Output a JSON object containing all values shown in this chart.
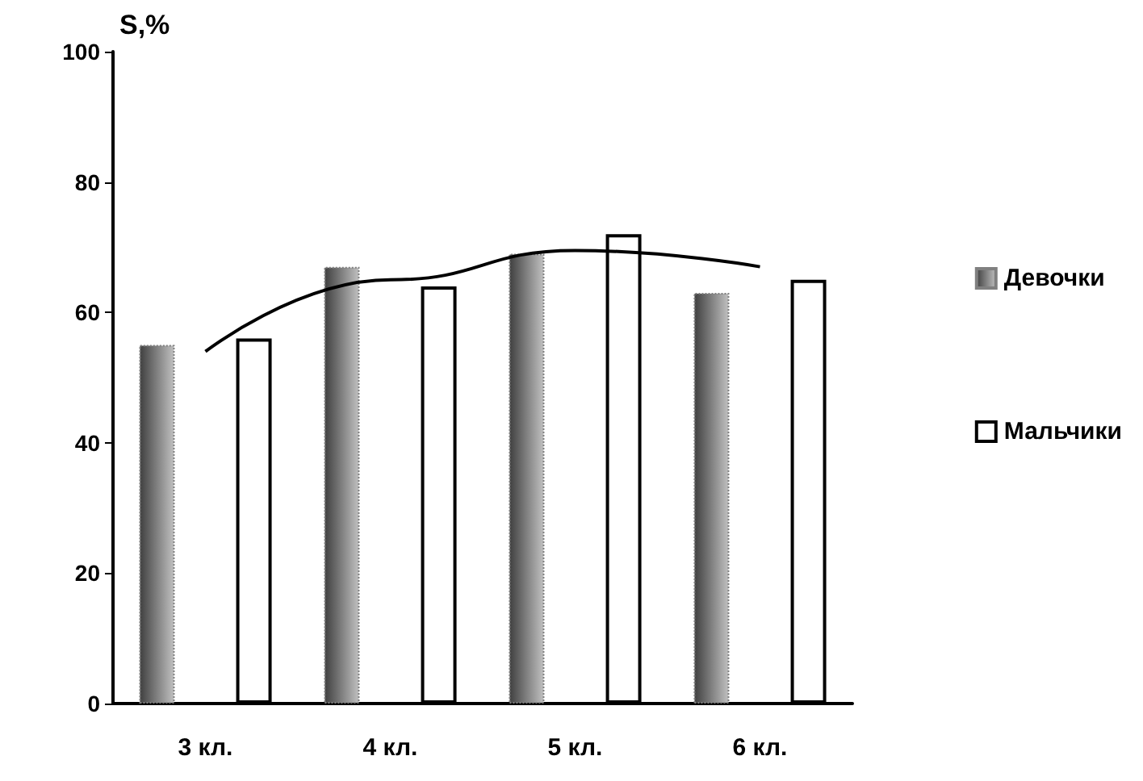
{
  "chart_data": {
    "type": "bar",
    "ylabel": "S,%",
    "categories": [
      "3 кл.",
      "4 кл.",
      "5 кл.",
      "6 кл."
    ],
    "series": [
      {
        "name": "Девочки",
        "color": "#808080",
        "values": [
          55,
          67,
          69,
          63
        ]
      },
      {
        "name": "Мальчики",
        "color": "#ffffff",
        "values": [
          56,
          64,
          72,
          65
        ]
      },
      {
        "type": "line",
        "color": "#000000",
        "values": [
          54,
          65,
          69.5,
          67
        ],
        "marker": "none"
      }
    ],
    "ylim": [
      0,
      100
    ],
    "yticks": [
      0,
      20,
      40,
      60,
      80,
      100
    ],
    "grid": false,
    "legend": "right"
  }
}
